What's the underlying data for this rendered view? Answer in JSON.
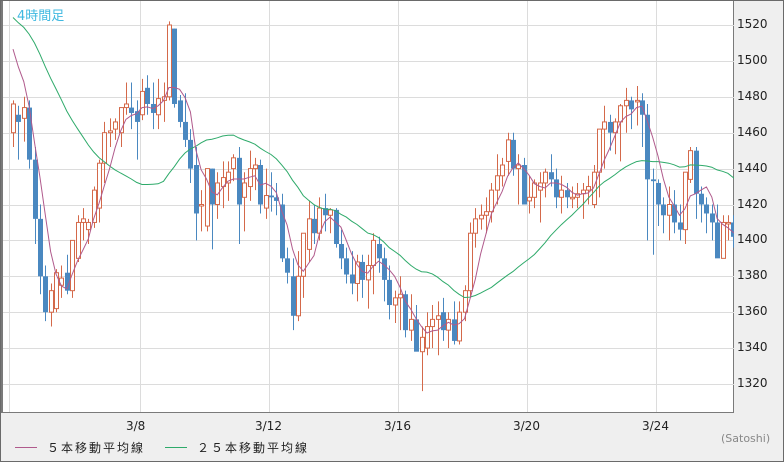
{
  "chart_title": "4時間足",
  "unit_label": "(Satoshi)",
  "colors": {
    "up": "#d4694a",
    "down": "#4a88c0",
    "ma5": "#b05a8c",
    "ma25": "#2eaa6a",
    "grid": "#dcdcdc",
    "title": "#3fb8e0"
  },
  "legend": [
    {
      "label": "５本移動平均線",
      "color": "#b05a8c"
    },
    {
      "label": "２５本移動平均線",
      "color": "#2eaa6a"
    }
  ],
  "chart_data": {
    "type": "candlestick",
    "title": "4時間足",
    "xlabel": "",
    "ylabel": "(Satoshi)",
    "ylim": [
      1305,
      1530
    ],
    "yticks": [
      1320,
      1340,
      1360,
      1380,
      1400,
      1420,
      1440,
      1460,
      1480,
      1500,
      1520
    ],
    "xticks": [
      "3/8",
      "3/12",
      "3/16",
      "3/20",
      "3/24"
    ],
    "grid": true,
    "candles_per_day": 6,
    "series_names": [
      "5本移動平均線",
      "25本移動平均線"
    ],
    "ohlc": [
      [
        1460,
        1478,
        1452,
        1476
      ],
      [
        1470,
        1475,
        1445,
        1466
      ],
      [
        1468,
        1480,
        1455,
        1474
      ],
      [
        1474,
        1478,
        1440,
        1445
      ],
      [
        1445,
        1452,
        1398,
        1412
      ],
      [
        1412,
        1420,
        1370,
        1380
      ],
      [
        1380,
        1386,
        1355,
        1360
      ],
      [
        1360,
        1376,
        1352,
        1372
      ],
      [
        1362,
        1384,
        1360,
        1382
      ],
      [
        1375,
        1386,
        1368,
        1379
      ],
      [
        1382,
        1392,
        1370,
        1372
      ],
      [
        1372,
        1400,
        1368,
        1400
      ],
      [
        1390,
        1414,
        1388,
        1410
      ],
      [
        1410,
        1418,
        1400,
        1412
      ],
      [
        1406,
        1412,
        1398,
        1410
      ],
      [
        1410,
        1430,
        1407,
        1428
      ],
      [
        1418,
        1445,
        1410,
        1443
      ],
      [
        1443,
        1466,
        1432,
        1460
      ],
      [
        1460,
        1468,
        1452,
        1461
      ],
      [
        1462,
        1468,
        1456,
        1466
      ],
      [
        1460,
        1474,
        1452,
        1474
      ],
      [
        1474,
        1488,
        1470,
        1476
      ],
      [
        1474,
        1488,
        1462,
        1471
      ],
      [
        1472,
        1478,
        1445,
        1466
      ],
      [
        1470,
        1490,
        1467,
        1483
      ],
      [
        1485,
        1492,
        1470,
        1476
      ],
      [
        1476,
        1488,
        1462,
        1471
      ],
      [
        1470,
        1490,
        1462,
        1479
      ],
      [
        1478,
        1488,
        1466,
        1480
      ],
      [
        1480,
        1522,
        1478,
        1520
      ],
      [
        1518,
        1518,
        1474,
        1476
      ],
      [
        1478,
        1481,
        1463,
        1466
      ],
      [
        1466,
        1482,
        1452,
        1456
      ],
      [
        1456,
        1462,
        1432,
        1440
      ],
      [
        1442,
        1452,
        1400,
        1415
      ],
      [
        1420,
        1428,
        1405,
        1420
      ],
      [
        1408,
        1430,
        1405,
        1440
      ],
      [
        1440,
        1440,
        1395,
        1420
      ],
      [
        1420,
        1438,
        1412,
        1432
      ],
      [
        1430,
        1444,
        1418,
        1435
      ],
      [
        1432,
        1444,
        1422,
        1438
      ],
      [
        1440,
        1448,
        1433,
        1446
      ],
      [
        1446,
        1452,
        1398,
        1420
      ],
      [
        1424,
        1438,
        1405,
        1432
      ],
      [
        1430,
        1450,
        1422,
        1440
      ],
      [
        1440,
        1446,
        1428,
        1442
      ],
      [
        1442,
        1445,
        1415,
        1420
      ],
      [
        1418,
        1440,
        1412,
        1425
      ],
      [
        1425,
        1438,
        1416,
        1424
      ],
      [
        1424,
        1432,
        1414,
        1422
      ],
      [
        1420,
        1426,
        1388,
        1390
      ],
      [
        1390,
        1396,
        1376,
        1382
      ],
      [
        1380,
        1390,
        1350,
        1358
      ],
      [
        1358,
        1394,
        1355,
        1380
      ],
      [
        1380,
        1400,
        1368,
        1404
      ],
      [
        1395,
        1422,
        1388,
        1412
      ],
      [
        1412,
        1420,
        1398,
        1404
      ],
      [
        1404,
        1424,
        1400,
        1418
      ],
      [
        1418,
        1426,
        1405,
        1414
      ],
      [
        1414,
        1418,
        1404,
        1417
      ],
      [
        1417,
        1418,
        1396,
        1398
      ],
      [
        1398,
        1406,
        1384,
        1390
      ],
      [
        1390,
        1396,
        1376,
        1381
      ],
      [
        1381,
        1394,
        1370,
        1376
      ],
      [
        1376,
        1392,
        1366,
        1388
      ],
      [
        1388,
        1392,
        1368,
        1378
      ],
      [
        1378,
        1392,
        1362,
        1386
      ],
      [
        1386,
        1404,
        1370,
        1400
      ],
      [
        1398,
        1402,
        1382,
        1390
      ],
      [
        1390,
        1396,
        1366,
        1378
      ],
      [
        1378,
        1386,
        1356,
        1364
      ],
      [
        1364,
        1372,
        1354,
        1368
      ],
      [
        1368,
        1380,
        1350,
        1370
      ],
      [
        1370,
        1372,
        1346,
        1350
      ],
      [
        1350,
        1370,
        1344,
        1356
      ],
      [
        1356,
        1364,
        1340,
        1338
      ],
      [
        1338,
        1352,
        1316,
        1346
      ],
      [
        1340,
        1360,
        1336,
        1352
      ],
      [
        1352,
        1364,
        1340,
        1356
      ],
      [
        1356,
        1366,
        1336,
        1358
      ],
      [
        1360,
        1368,
        1344,
        1350
      ],
      [
        1350,
        1360,
        1340,
        1356
      ],
      [
        1356,
        1366,
        1342,
        1344
      ],
      [
        1344,
        1366,
        1342,
        1360
      ],
      [
        1360,
        1375,
        1355,
        1372
      ],
      [
        1372,
        1410,
        1368,
        1404
      ],
      [
        1404,
        1418,
        1396,
        1412
      ],
      [
        1412,
        1420,
        1406,
        1414
      ],
      [
        1414,
        1424,
        1404,
        1416
      ],
      [
        1416,
        1432,
        1410,
        1428
      ],
      [
        1428,
        1448,
        1420,
        1436
      ],
      [
        1436,
        1446,
        1430,
        1442
      ],
      [
        1444,
        1460,
        1436,
        1456
      ],
      [
        1456,
        1460,
        1436,
        1440
      ],
      [
        1440,
        1448,
        1420,
        1442
      ],
      [
        1442,
        1446,
        1422,
        1420
      ],
      [
        1422,
        1436,
        1415,
        1424
      ],
      [
        1424,
        1434,
        1418,
        1432
      ],
      [
        1428,
        1438,
        1410,
        1432
      ],
      [
        1432,
        1440,
        1424,
        1438
      ],
      [
        1438,
        1448,
        1430,
        1434
      ],
      [
        1434,
        1440,
        1418,
        1424
      ],
      [
        1424,
        1436,
        1415,
        1428
      ],
      [
        1428,
        1432,
        1418,
        1424
      ],
      [
        1424,
        1430,
        1418,
        1424
      ],
      [
        1424,
        1432,
        1418,
        1426
      ],
      [
        1426,
        1432,
        1412,
        1428
      ],
      [
        1428,
        1436,
        1420,
        1430
      ],
      [
        1420,
        1442,
        1418,
        1438
      ],
      [
        1438,
        1456,
        1424,
        1462
      ],
      [
        1462,
        1475,
        1440,
        1466
      ],
      [
        1466,
        1470,
        1450,
        1460
      ],
      [
        1460,
        1468,
        1448,
        1466
      ],
      [
        1466,
        1476,
        1444,
        1475
      ],
      [
        1475,
        1485,
        1460,
        1478
      ],
      [
        1478,
        1480,
        1462,
        1473
      ],
      [
        1478,
        1486,
        1464,
        1478
      ],
      [
        1478,
        1482,
        1452,
        1470
      ],
      [
        1470,
        1476,
        1400,
        1434
      ],
      [
        1434,
        1440,
        1392,
        1433
      ],
      [
        1432,
        1434,
        1408,
        1420
      ],
      [
        1420,
        1424,
        1404,
        1414
      ],
      [
        1414,
        1430,
        1400,
        1420
      ],
      [
        1420,
        1428,
        1404,
        1410
      ],
      [
        1410,
        1420,
        1400,
        1406
      ],
      [
        1406,
        1432,
        1398,
        1438
      ],
      [
        1434,
        1452,
        1432,
        1450
      ],
      [
        1450,
        1452,
        1412,
        1426
      ],
      [
        1426,
        1430,
        1410,
        1420
      ],
      [
        1420,
        1424,
        1404,
        1415
      ],
      [
        1415,
        1420,
        1400,
        1410
      ],
      [
        1410,
        1420,
        1392,
        1390
      ],
      [
        1390,
        1414,
        1390,
        1410
      ],
      [
        1410,
        1414,
        1400,
        1410
      ],
      [
        1410,
        1414,
        1396,
        1402
      ],
      [
        1402,
        1408,
        1400,
        1404
      ]
    ]
  }
}
